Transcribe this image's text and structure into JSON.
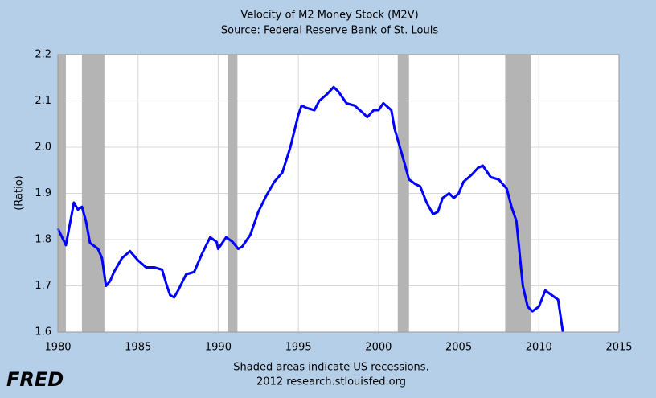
{
  "chart_data": {
    "type": "line",
    "title": "Velocity of M2 Money Stock (M2V)",
    "subtitle": "Source: Federal Reserve Bank of St. Louis",
    "y_label": "(Ratio)",
    "note": "Shaded areas indicate US recessions.",
    "credit": "2012 research.stlouisfed.org",
    "logo": "FRED",
    "xlim": [
      1980,
      2015
    ],
    "xticks": [
      1980,
      1985,
      1990,
      1995,
      2000,
      2005,
      2010,
      2015
    ],
    "ylim": [
      1.6,
      2.2
    ],
    "yticks": [
      1.6,
      1.7,
      1.8,
      1.9,
      {
        "value": 2,
        "label": "2.0"
      },
      2.1,
      2.2
    ],
    "grid": true,
    "recessions": [
      [
        1980.0,
        1980.5
      ],
      [
        1981.5,
        1982.9
      ],
      [
        1990.6,
        1991.2
      ],
      [
        2001.2,
        2001.9
      ],
      [
        2007.9,
        2009.5
      ]
    ],
    "recession_color": "#b4b4b4",
    "x": [
      1980,
      1980.5,
      1981,
      1981.25,
      1981.5,
      1981.75,
      1982,
      1982.5,
      1982.75,
      1983,
      1983.25,
      1983.5,
      1984,
      1984.5,
      1985,
      1985.5,
      1986,
      1986.5,
      1986.8,
      1987,
      1987.25,
      1987.5,
      1988,
      1988.5,
      1989,
      1989.5,
      1989.9,
      1990,
      1990.5,
      1990.9,
      1991.25,
      1991.5,
      1992,
      1992.5,
      1993,
      1993.5,
      1994,
      1994.5,
      1995,
      1995.2,
      1995.5,
      1996,
      1996.3,
      1996.8,
      1997.2,
      1997.5,
      1998,
      1998.5,
      1999,
      1999.3,
      1999.7,
      2000,
      2000.3,
      2000.8,
      2001,
      2001.5,
      2001.9,
      2002.3,
      2002.6,
      2003,
      2003.4,
      2003.7,
      2004,
      2004.4,
      2004.7,
      2005,
      2005.3,
      2005.8,
      2006.2,
      2006.5,
      2007,
      2007.5,
      2008,
      2008.3,
      2008.6,
      2009,
      2009.3,
      2009.6,
      2010,
      2010.4,
      2010.8,
      2011.2,
      2011.5
    ],
    "series": [
      {
        "name": "M2V",
        "color": "#0000ff",
        "values": [
          1.824,
          1.788,
          1.88,
          1.865,
          1.871,
          1.84,
          1.793,
          1.78,
          1.76,
          1.7,
          1.71,
          1.73,
          1.76,
          1.775,
          1.755,
          1.74,
          1.74,
          1.735,
          1.7,
          1.68,
          1.675,
          1.69,
          1.725,
          1.73,
          1.77,
          1.805,
          1.795,
          1.78,
          1.805,
          1.795,
          1.78,
          1.785,
          1.81,
          1.86,
          1.895,
          1.925,
          1.945,
          2.0,
          2.07,
          2.09,
          2.085,
          2.08,
          2.1,
          2.115,
          2.13,
          2.12,
          2.095,
          2.09,
          2.075,
          2.065,
          2.08,
          2.08,
          2.095,
          2.08,
          2.04,
          1.98,
          1.93,
          1.92,
          1.915,
          1.88,
          1.855,
          1.86,
          1.89,
          1.9,
          1.89,
          1.9,
          1.925,
          1.94,
          1.955,
          1.96,
          1.935,
          1.93,
          1.91,
          1.87,
          1.84,
          1.7,
          1.655,
          1.645,
          1.655,
          1.69,
          1.68,
          1.67,
          1.6
        ]
      }
    ]
  }
}
